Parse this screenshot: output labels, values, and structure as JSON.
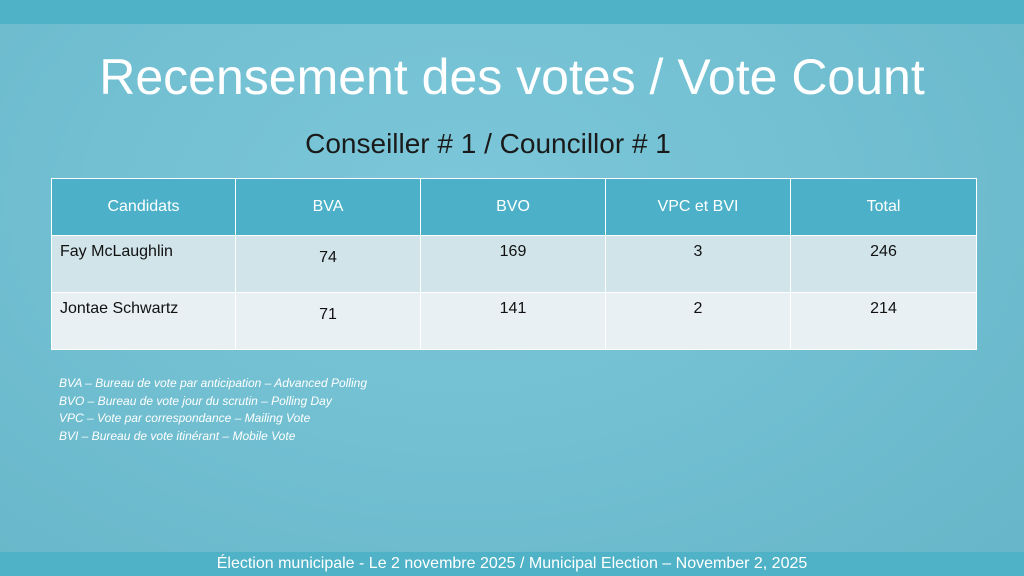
{
  "slide": {
    "title": "Recensement des votes / Vote Count",
    "subtitle": "Conseiller # 1 / Councillor # 1",
    "table": {
      "headers": [
        "Candidats",
        "BVA",
        "BVO",
        "VPC et BVI",
        "Total"
      ],
      "rows": [
        {
          "candidate": "Fay McLaughlin",
          "bva": "74",
          "bvo": "169",
          "vpc_bvi": "3",
          "total": "246"
        },
        {
          "candidate": "Jontae Schwartz",
          "bva": "71",
          "bvo": "141",
          "vpc_bvi": "2",
          "total": "214"
        }
      ]
    },
    "legend": [
      "BVA – Bureau de vote par anticipation – Advanced Polling",
      "BVO – Bureau de vote jour du scrutin – Polling Day",
      "VPC – Vote par correspondance – Mailing Vote",
      "BVI – Bureau de vote itinérant – Mobile Vote"
    ],
    "footer": "Élection municipale - Le 2 novembre 2025 / Municipal Election – November 2, 2025"
  },
  "colors": {
    "background": "#72c0d2",
    "bars": "#4fb2c7",
    "header_fill": "#4cb1c8",
    "row_odd": "#d0e4ea",
    "row_even": "#e8f0f3"
  }
}
